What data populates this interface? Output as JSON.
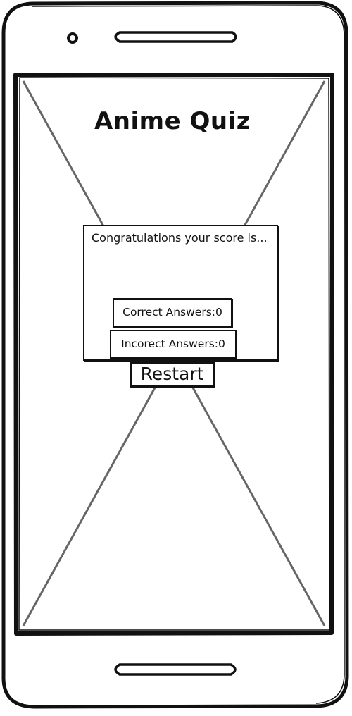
{
  "app": {
    "title": "Anime Quiz"
  },
  "results": {
    "heading": "Congratulations your score is...",
    "correct_label": "Correct Answers:0",
    "incorrect_label": "Incorect Answers:0",
    "correct_count": 0,
    "incorrect_count": 0
  },
  "actions": {
    "restart_label": "Restart"
  },
  "colors": {
    "ink": "#111111",
    "placeholder_cross": "#666666",
    "background": "#ffffff"
  }
}
